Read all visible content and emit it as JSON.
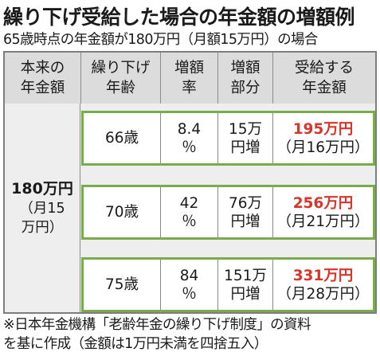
{
  "title": "繰り下げ受給した場合の年金額の増額例",
  "subtitle": "65歳時点の年金額が180万円（月額15万円）の場合",
  "header": {
    "basic": [
      "本来の",
      "年金額"
    ],
    "age": [
      "繰り下げ",
      "年齢"
    ],
    "rate": [
      "増額",
      "率"
    ],
    "portion": [
      "増額",
      "部分"
    ],
    "received": [
      "受給する",
      "年金額"
    ]
  },
  "basic": {
    "amount": "180万円",
    "sub": [
      "（月15",
      "万円）"
    ]
  },
  "rows": [
    {
      "age": "66歳",
      "rate": [
        "8.4",
        "％"
      ],
      "increase": [
        "15万",
        "円増"
      ],
      "received": "195万円",
      "monthly": "（月16万円）"
    },
    {
      "age": "70歳",
      "rate": [
        "42",
        "％"
      ],
      "increase": [
        "76万",
        "円増"
      ],
      "received": "256万円",
      "monthly": "（月21万円）"
    },
    {
      "age": "75歳",
      "rate": [
        "84",
        "％"
      ],
      "increase": [
        "151万",
        "円増"
      ],
      "received": "331万円",
      "monthly": "（月28万円）"
    }
  ],
  "note": [
    "※日本年金機構「老齢年金の繰り下げ制度」の資料",
    "を基に作成（金額は1万円未満を四捨五入）"
  ],
  "colors": {
    "accent_red": "#d8352b",
    "row_border_green": "#7aab4e",
    "header_gray": "#dcdcdc",
    "body_gray": "#eeeeee"
  }
}
